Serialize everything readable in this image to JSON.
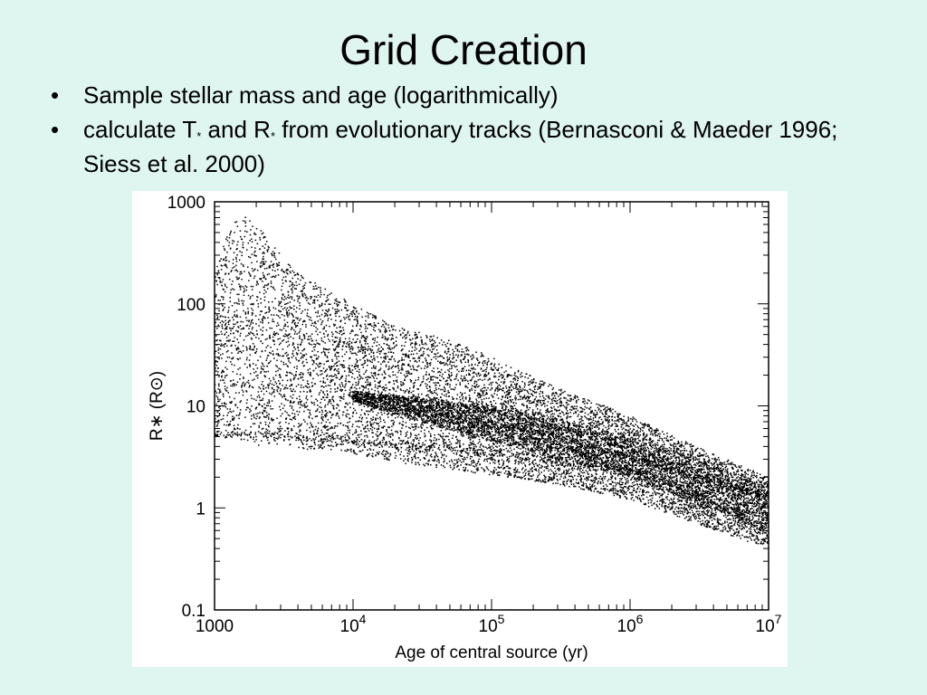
{
  "slide": {
    "title": "Grid Creation",
    "bullets": [
      {
        "marker": "•",
        "text": "Sample stellar mass and age (logarithmically)"
      },
      {
        "marker": "•",
        "pre": "calculate T",
        "sub1": "*",
        "mid": " and R",
        "sub2": "*",
        "post": " from evolutionary tracks (Bernasconi & Maeder 1996; Siess et al. 2000)"
      }
    ]
  },
  "colors": {
    "background": "#dff5ef",
    "plot_background": "#ffffff",
    "points": "#000000"
  },
  "chart_data": {
    "type": "scatter",
    "title": "",
    "xlabel": "Age of central source (yr)",
    "ylabel": "R∗ (R⊙)",
    "xscale": "log",
    "yscale": "log",
    "xlim": [
      1000,
      10000000
    ],
    "ylim": [
      0.1,
      1000
    ],
    "grid": false,
    "legend": "none",
    "x_ticks": [
      {
        "value": 1000,
        "label": "1000",
        "base": "1000",
        "exp": ""
      },
      {
        "value": 10000,
        "label": "10^4",
        "base": "10",
        "exp": "4"
      },
      {
        "value": 100000,
        "label": "10^5",
        "base": "10",
        "exp": "5"
      },
      {
        "value": 1000000,
        "label": "10^6",
        "base": "10",
        "exp": "6"
      },
      {
        "value": 10000000,
        "label": "10^7",
        "base": "10",
        "exp": "7"
      }
    ],
    "y_ticks": [
      {
        "value": 1000,
        "label": "1000"
      },
      {
        "value": 100,
        "label": "100"
      },
      {
        "value": 10,
        "label": "10"
      },
      {
        "value": 1,
        "label": "1"
      },
      {
        "value": 0.1,
        "label": "0.1"
      }
    ],
    "envelope": {
      "x": [
        1000,
        1300,
        1800,
        2500,
        4000,
        7000,
        10000,
        20000,
        50000,
        100000,
        300000,
        1000000,
        3000000,
        10000000
      ],
      "upper": [
        200,
        600,
        800,
        400,
        200,
        130,
        100,
        60,
        45,
        30,
        15,
        8,
        4,
        2
      ],
      "lower": [
        5,
        4.5,
        4.2,
        4,
        3.8,
        3.6,
        3.4,
        2.8,
        2.4,
        2.1,
        1.7,
        1.2,
        0.7,
        0.4
      ]
    },
    "dense_band": {
      "x": [
        10000,
        30000,
        100000,
        300000,
        1000000,
        3000000,
        10000000
      ],
      "upper": [
        14,
        12,
        10,
        7.5,
        5,
        3,
        1.7
      ],
      "lower": [
        11,
        7,
        4.5,
        3,
        2,
        1.1,
        0.6
      ]
    },
    "tracks": [
      {
        "x": [
          1000,
          10000,
          100000,
          1000000,
          10000000
        ],
        "y": [
          5.5,
          4.5,
          3.5,
          2.3,
          0.6
        ]
      },
      {
        "x": [
          10000,
          100000,
          1000000,
          10000000
        ],
        "y": [
          12,
          6,
          2.5,
          0.7
        ]
      },
      {
        "x": [
          10000,
          100000,
          1000000,
          10000000
        ],
        "y": [
          13,
          9,
          4,
          1.2
        ]
      },
      {
        "x": [
          30000,
          300000,
          3000000,
          10000000
        ],
        "y": [
          10,
          5,
          2,
          1.3
        ]
      }
    ],
    "n_points": 9000
  }
}
